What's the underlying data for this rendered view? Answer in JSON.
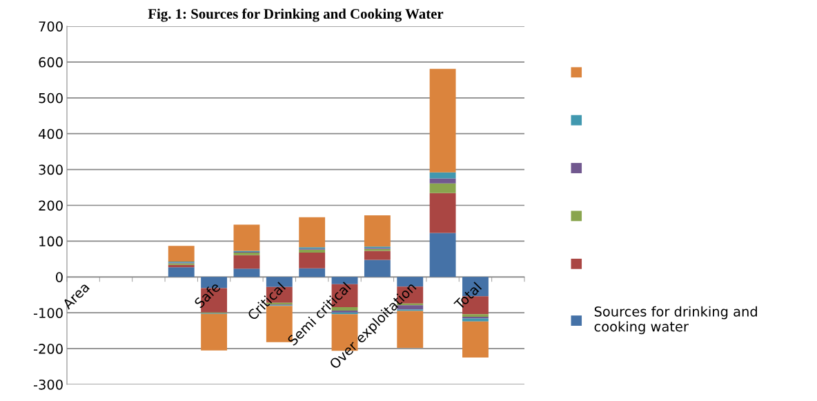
{
  "chart_data": {
    "type": "bar",
    "title": "Fig. 1: Sources for Drinking and Cooking Water",
    "stacked": true,
    "categories": [
      "Area",
      null,
      null,
      null,
      "Safe",
      null,
      "Critical",
      null,
      "Semi critical",
      null,
      "Over exploitation",
      null,
      "Total",
      null
    ],
    "series": [
      {
        "name": "Sources for drinking and cooking water",
        "color": "#4572a7",
        "values": [
          null,
          null,
          null,
          27,
          -31,
          23,
          -28,
          24,
          -20,
          48,
          -27,
          123,
          -54,
          null
        ]
      },
      {
        "color": "#aa4643",
        "values": [
          null,
          null,
          null,
          7,
          -68,
          38,
          -44,
          44,
          -64,
          25,
          -47,
          111,
          -50,
          null
        ]
      },
      {
        "color": "#89a54e",
        "values": [
          null,
          null,
          null,
          4,
          -2,
          7,
          -5,
          8,
          -10,
          5,
          -5,
          27,
          -7,
          null
        ]
      },
      {
        "color": "#71588f",
        "values": [
          null,
          null,
          null,
          2,
          null,
          2,
          -2,
          3,
          -5,
          3,
          -12,
          14,
          -5,
          null
        ]
      },
      {
        "color": "#4198af",
        "values": [
          null,
          null,
          null,
          3,
          -2,
          3,
          -2,
          4,
          -5,
          4,
          -4,
          17,
          -8,
          null
        ]
      },
      {
        "color": "#db843d",
        "values": [
          null,
          null,
          null,
          44,
          -102,
          73,
          -101,
          84,
          -102,
          87,
          -103,
          289,
          -101,
          null
        ]
      }
    ],
    "ylim": [
      -300,
      700
    ],
    "yticks": [
      -300,
      -200,
      -100,
      0,
      100,
      200,
      300,
      400,
      500,
      600,
      700
    ],
    "grid": "y",
    "legend": "right"
  }
}
